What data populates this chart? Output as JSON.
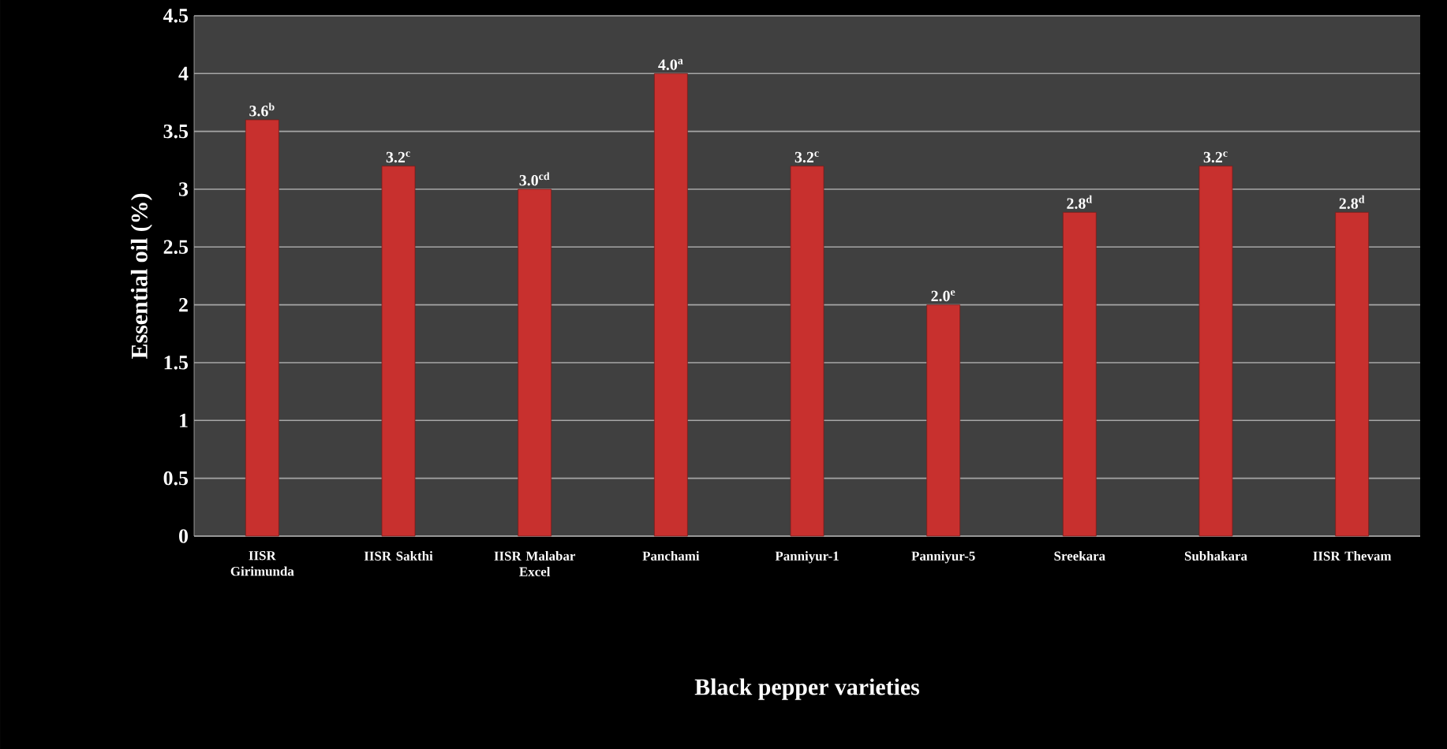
{
  "chart_data": {
    "type": "bar",
    "xlabel": "Black pepper varieties",
    "ylabel": "Essential oil (%)",
    "categories": [
      "IISR Girimunda",
      "IISR Sakthi",
      "IISR Malabar Excel",
      "Panchami",
      "Panniyur-1",
      "Panniyur-5",
      "Sreekara",
      "Subhakara",
      "IISR Thevam"
    ],
    "values": [
      3.6,
      3.2,
      3.0,
      4.0,
      3.2,
      2.0,
      2.8,
      3.2,
      2.8
    ],
    "value_labels": [
      "3.6$^{b}$",
      "3.2$^{c}$",
      "3.0$^{cd}$",
      "4.0$^{a}$",
      "3.2$^{c}$",
      "2.0$^{e}$",
      "2.8$^{d}$",
      "3.2$^{c}$",
      "2.8$^{d}$"
    ],
    "color": "#c8302e",
    "ylim": [
      0,
      4.5
    ],
    "yticks": [
      0,
      0.5,
      1,
      1.5,
      2,
      2.5,
      3,
      3.5,
      4,
      4.5
    ],
    "grid": "y"
  }
}
